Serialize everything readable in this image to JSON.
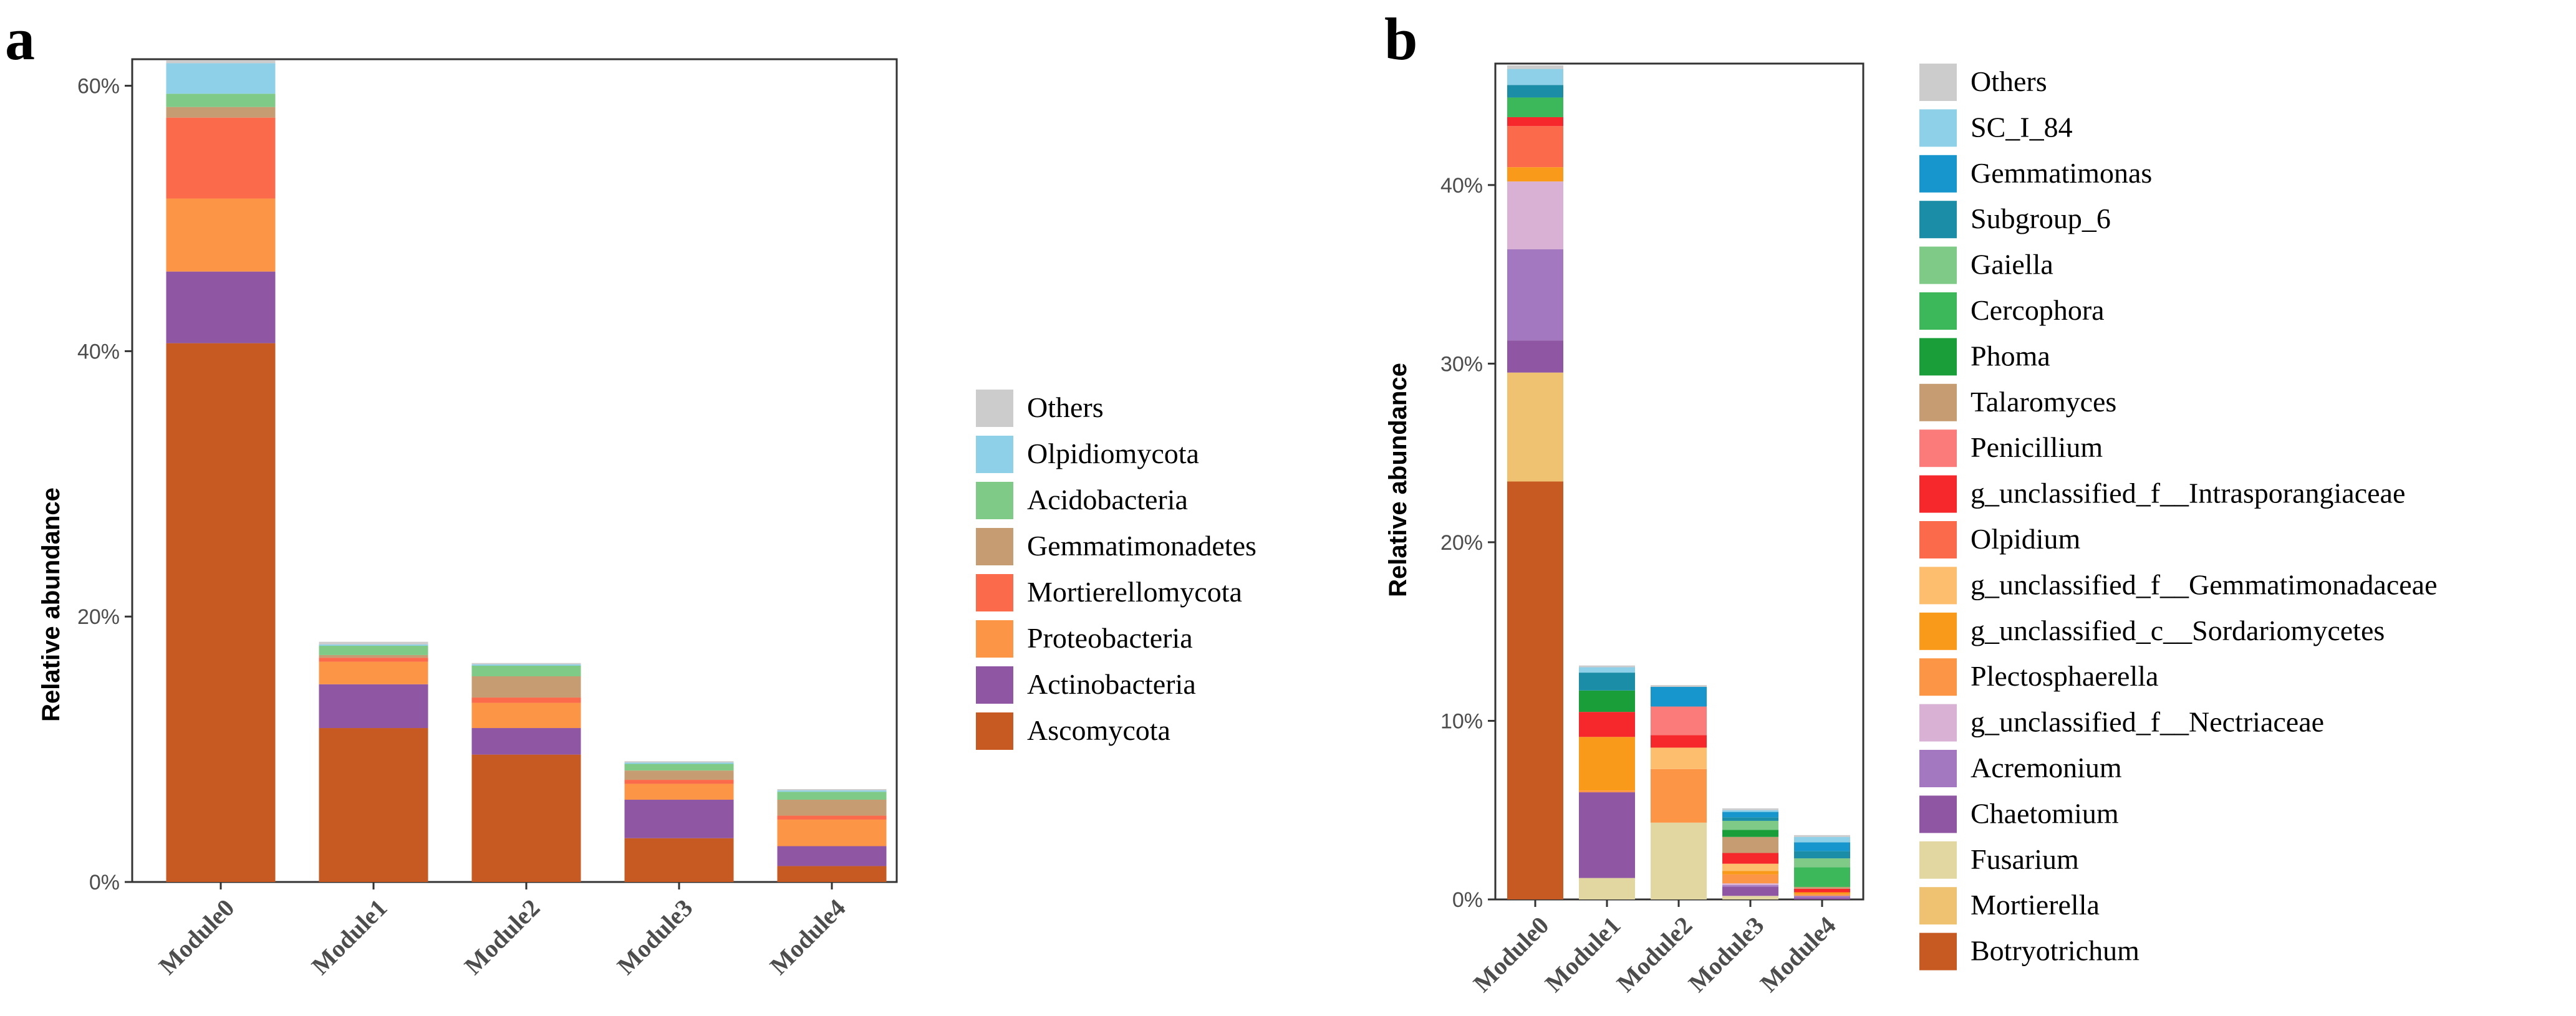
{
  "chart_data": [
    {
      "type": "bar",
      "stacked": true,
      "panel_label": "a",
      "ylabel": "Relative abundance",
      "xlabel": "",
      "ylim": [
        0,
        62
      ],
      "yticks": [
        0,
        20,
        40,
        60
      ],
      "ytick_labels": [
        "0%",
        "20%",
        "40%",
        "60%"
      ],
      "grid": false,
      "legend_position": "right",
      "categories": [
        "Module0",
        "Module1",
        "Module2",
        "Module3",
        "Module4"
      ],
      "series": [
        {
          "name": "Ascomycota",
          "color": "#C65A22",
          "values": [
            40.6,
            11.6,
            9.6,
            3.3,
            1.2
          ]
        },
        {
          "name": "Actinobacteria",
          "color": "#8E56A3",
          "values": [
            5.4,
            3.3,
            2.0,
            2.9,
            1.5
          ]
        },
        {
          "name": "Proteobacteria",
          "color": "#FC9546",
          "values": [
            5.5,
            1.7,
            1.9,
            1.2,
            2.0
          ]
        },
        {
          "name": "Mortierellomycota",
          "color": "#FB6A4A",
          "values": [
            6.1,
            0.3,
            0.4,
            0.3,
            0.3
          ]
        },
        {
          "name": "Gemmatimonadetes",
          "color": "#C69C73",
          "values": [
            0.8,
            0.2,
            1.6,
            0.7,
            1.2
          ]
        },
        {
          "name": "Acidobacteria",
          "color": "#7FCA86",
          "values": [
            1.0,
            0.7,
            0.8,
            0.5,
            0.6
          ]
        },
        {
          "name": "Olpidiomycota",
          "color": "#8ED0E8",
          "values": [
            2.3,
            0.1,
            0.1,
            0.1,
            0.1
          ]
        },
        {
          "name": "Others",
          "color": "#CCCCCC",
          "values": [
            0.2,
            0.2,
            0.1,
            0.1,
            0.1
          ]
        }
      ]
    },
    {
      "type": "bar",
      "stacked": true,
      "panel_label": "b",
      "ylabel": "Relative abundance",
      "xlabel": "",
      "ylim": [
        0,
        46.8
      ],
      "yticks": [
        0,
        10,
        20,
        30,
        40
      ],
      "ytick_labels": [
        "0%",
        "10%",
        "20%",
        "30%",
        "40%"
      ],
      "grid": false,
      "legend_position": "right",
      "categories": [
        "Module0",
        "Module1",
        "Module2",
        "Module3",
        "Module4"
      ],
      "series": [
        {
          "name": "Botryotrichum",
          "color": "#C65A22",
          "values": [
            23.4,
            0,
            0,
            0,
            0
          ]
        },
        {
          "name": "Mortierella",
          "color": "#EFC272",
          "values": [
            6.1,
            0,
            0,
            0,
            0
          ]
        },
        {
          "name": "Fusarium",
          "color": "#E2D7A1",
          "values": [
            0,
            1.2,
            4.3,
            0.2,
            0
          ]
        },
        {
          "name": "Chaetomium",
          "color": "#8E56A3",
          "values": [
            1.8,
            4.8,
            0,
            0.5,
            0.1
          ]
        },
        {
          "name": "Acremonium",
          "color": "#A478C0",
          "values": [
            5.1,
            0,
            0,
            0.1,
            0.1
          ]
        },
        {
          "name": "g_unclassified_f__Nectriaceae",
          "color": "#D8B1D4",
          "values": [
            3.8,
            0,
            0,
            0.1,
            0
          ]
        },
        {
          "name": "Plectosphaerella",
          "color": "#FC9546",
          "values": [
            0,
            0.1,
            3.0,
            0.5,
            0.1
          ]
        },
        {
          "name": "g_unclassified_c__Sordariomycetes",
          "color": "#FA9A1A",
          "values": [
            0.8,
            3.0,
            0,
            0.2,
            0.1
          ]
        },
        {
          "name": "g_unclassified_f__Gemmatimonadaceae",
          "color": "#FDBE6E",
          "values": [
            0,
            0,
            1.2,
            0.4,
            0
          ]
        },
        {
          "name": "Olpidium",
          "color": "#FB6A4A",
          "values": [
            2.3,
            0,
            0,
            0,
            0
          ]
        },
        {
          "name": "g_unclassified_f__Intrasporangiaceae",
          "color": "#F7282C",
          "values": [
            0.5,
            1.4,
            0.7,
            0.6,
            0.2
          ]
        },
        {
          "name": "Penicillium",
          "color": "#FB7B7B",
          "values": [
            0,
            0,
            1.6,
            0,
            0
          ]
        },
        {
          "name": "Talaromyces",
          "color": "#C69C73",
          "values": [
            0,
            0,
            0,
            0.9,
            0.1
          ]
        },
        {
          "name": "Phoma",
          "color": "#1A9E3A",
          "values": [
            0,
            1.2,
            0,
            0.4,
            0
          ]
        },
        {
          "name": "Cercophora",
          "color": "#3CB85A",
          "values": [
            1.1,
            0,
            0,
            0,
            1.1
          ]
        },
        {
          "name": "Gaiella",
          "color": "#7FCA86",
          "values": [
            0,
            0,
            0,
            0.5,
            0.5
          ]
        },
        {
          "name": "Subgroup_6",
          "color": "#1B8DA6",
          "values": [
            0.7,
            1.0,
            0,
            0.2,
            0.4
          ]
        },
        {
          "name": "Gemmatimonas",
          "color": "#1696CC",
          "values": [
            0,
            0,
            1.1,
            0.3,
            0.5
          ]
        },
        {
          "name": "SC_I_84",
          "color": "#8ED0E8",
          "values": [
            0.9,
            0.3,
            0,
            0.1,
            0.3
          ]
        },
        {
          "name": "Others",
          "color": "#CCCCCC",
          "values": [
            0.2,
            0.1,
            0.1,
            0.1,
            0.1
          ]
        }
      ]
    }
  ]
}
